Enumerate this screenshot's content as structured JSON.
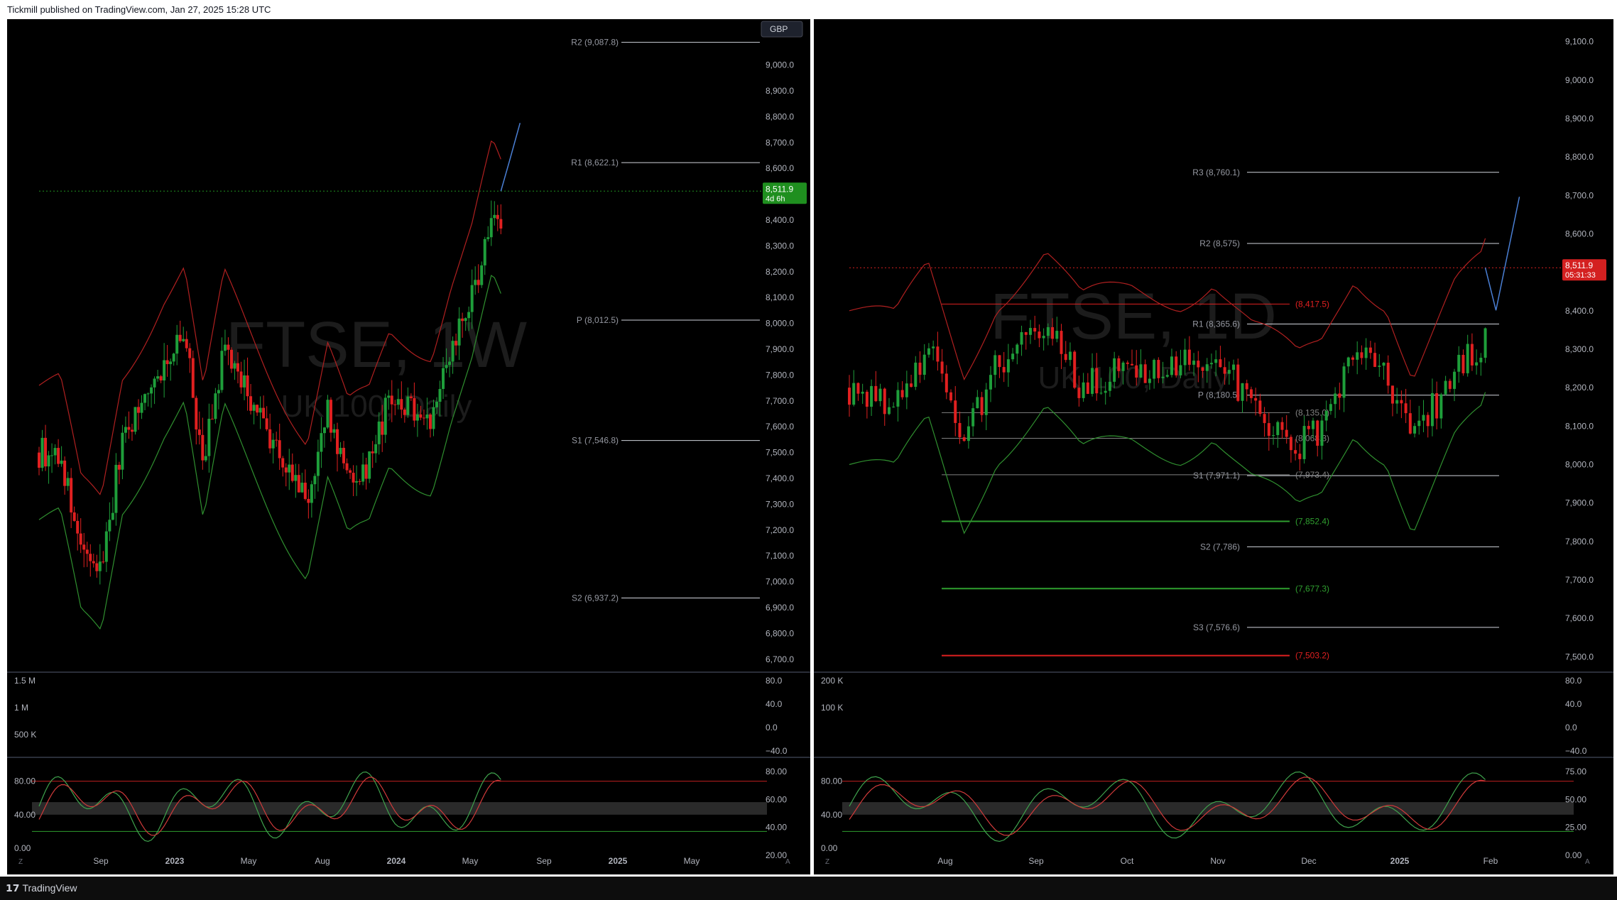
{
  "header": {
    "text": "Tickmill published on TradingView.com, Jan 27, 2025 15:28 UTC"
  },
  "footer": {
    "brand": "TradingView",
    "logo": "tradingview-logo"
  },
  "colors": {
    "bg": "#000000",
    "up": "#1e9e3a",
    "down": "#e02020",
    "price_tag": "#1f8f1f",
    "price_tag_right": "#d42020",
    "ma_red": "#b02020",
    "ma_green": "#2f8f2f"
  },
  "panels": [
    {
      "id": "left",
      "watermark": {
        "symbol": "FTSE, 1W",
        "subtitle": "UK 100, Daily"
      },
      "currency_button": "GBP",
      "price_axis": {
        "ticks": [
          "9,000.0",
          "8,900.0",
          "8,800.0",
          "8,700.0",
          "8,600.0",
          "8,400.0",
          "8,300.0",
          "8,200.0",
          "8,100.0",
          "8,000.0",
          "7,900.0",
          "7,800.0",
          "7,700.0",
          "7,600.0",
          "7,500.0",
          "7,400.0",
          "7,300.0",
          "7,200.0",
          "7,100.0",
          "7,000.0",
          "6,900.0",
          "6,800.0",
          "6,700.0"
        ],
        "min": 6650,
        "max": 9150
      },
      "last_price": {
        "value": "8,511.9",
        "countdown": "4d 6h"
      },
      "pivots": [
        {
          "label": "R2 (9,087.8)",
          "value": 9087.8
        },
        {
          "label": "R1 (8,622.1)",
          "value": 8622.1
        },
        {
          "label": "P (8,012.5)",
          "value": 8012.5
        },
        {
          "label": "S1 (7,546.8)",
          "value": 7546.8
        },
        {
          "label": "S2 (6,937.2)",
          "value": 6937.2
        }
      ],
      "volume_axis": [
        "1.5 M",
        "1 M",
        "500 K"
      ],
      "volume_osc_axis": [
        "80.0",
        "40.0",
        "0.0",
        "−40.0"
      ],
      "stoch_axis_left": [
        "80.00",
        "40.00",
        "0.00"
      ],
      "stoch_axis_right": [
        "80.00",
        "60.00",
        "40.00",
        "20.00"
      ],
      "time_axis": [
        "Sep",
        "2023",
        "May",
        "Aug",
        "2024",
        "May",
        "Sep",
        "2025",
        "May"
      ],
      "corner_left": "Z",
      "corner_right": "A"
    },
    {
      "id": "right",
      "watermark": {
        "symbol": "FTSE, 1D",
        "subtitle": "UK 100, Daily"
      },
      "price_axis": {
        "ticks": [
          "9,100.0",
          "9,000.0",
          "8,900.0",
          "8,800.0",
          "8,700.0",
          "8,600.0",
          "8,400.0",
          "8,300.0",
          "8,200.0",
          "8,100.0",
          "8,000.0",
          "7,900.0",
          "7,800.0",
          "7,700.0",
          "7,600.0",
          "7,500.0"
        ],
        "min": 7460,
        "max": 9140
      },
      "last_price": {
        "value": "8,511.9",
        "countdown": "05:31:33"
      },
      "pivots": [
        {
          "label": "R3 (8,760.1)",
          "value": 8760.1
        },
        {
          "label": "R2 (8,575)",
          "value": 8575
        },
        {
          "label": "R1 (8,365.6)",
          "value": 8365.6
        },
        {
          "label": "P (8,180.5)",
          "value": 8180.5
        },
        {
          "label": "S1 (7,971.1)",
          "value": 7971.1
        },
        {
          "label": "S2 (7,786)",
          "value": 7786
        },
        {
          "label": "S3 (7,576.6)",
          "value": 7576.6
        }
      ],
      "fib_levels": [
        {
          "label": "(8,417.5)",
          "value": 8417.5
        },
        {
          "label": "(8,135.0)",
          "value": 8135.0
        },
        {
          "label": "(8,068.3)",
          "value": 8068.3
        },
        {
          "label": "(7,973.4)",
          "value": 7973.4
        },
        {
          "label": "(7,852.4)",
          "value": 7852.4
        },
        {
          "label": "(7,677.3)",
          "value": 7677.3
        },
        {
          "label": "(7,503.2)",
          "value": 7503.2
        }
      ],
      "volume_axis": [
        "200 K",
        "100 K"
      ],
      "volume_osc_axis": [
        "80.0",
        "40.0",
        "0.0",
        "−40.0"
      ],
      "stoch_axis_left": [
        "80.00",
        "40.00",
        "0.00"
      ],
      "stoch_axis_right": [
        "75.00",
        "50.00",
        "25.00",
        "0.00"
      ],
      "time_axis": [
        "Aug",
        "Sep",
        "Oct",
        "Nov",
        "Dec",
        "2025",
        "Feb"
      ],
      "corner_left": "Z",
      "corner_right": "A"
    }
  ],
  "chart_data": [
    {
      "type": "candlestick",
      "symbol": "FTSE",
      "interval": "1W",
      "x_range": [
        "2022-07",
        "2025-06"
      ],
      "ylim": [
        6650,
        9150
      ],
      "close_path": [
        {
          "t": "2022-08",
          "v": 7500
        },
        {
          "t": "2022-09",
          "v": 7100
        },
        {
          "t": "2022-10",
          "v": 7050
        },
        {
          "t": "2022-11",
          "v": 7550
        },
        {
          "t": "2023-01",
          "v": 7850
        },
        {
          "t": "2023-02",
          "v": 7950
        },
        {
          "t": "2023-03",
          "v": 7450
        },
        {
          "t": "2023-04",
          "v": 7900
        },
        {
          "t": "2023-05",
          "v": 7750
        },
        {
          "t": "2023-07",
          "v": 7450
        },
        {
          "t": "2023-08",
          "v": 7300
        },
        {
          "t": "2023-09",
          "v": 7650
        },
        {
          "t": "2023-10",
          "v": 7400
        },
        {
          "t": "2023-11",
          "v": 7450
        },
        {
          "t": "2023-12",
          "v": 7700
        },
        {
          "t": "2024-02",
          "v": 7650
        },
        {
          "t": "2024-03",
          "v": 7900
        },
        {
          "t": "2024-04",
          "v": 8100
        },
        {
          "t": "2024-05",
          "v": 8400
        },
        {
          "t": "2024-06",
          "v": 8200
        },
        {
          "t": "2024-07",
          "v": 8250
        },
        {
          "t": "2024-08",
          "v": 8300
        },
        {
          "t": "2024-09",
          "v": 8250
        },
        {
          "t": "2024-10",
          "v": 8250
        },
        {
          "t": "2024-11",
          "v": 8150
        },
        {
          "t": "2024-12",
          "v": 8100
        },
        {
          "t": "2025-01",
          "v": 8511.9
        }
      ]
    },
    {
      "type": "candlestick",
      "symbol": "FTSE",
      "interval": "1D",
      "x_range": [
        "2024-07-01",
        "2025-02-05"
      ],
      "ylim": [
        7460,
        9140
      ],
      "close_path": [
        {
          "t": "2024-07-01",
          "v": 8200
        },
        {
          "t": "2024-07-15",
          "v": 8150
        },
        {
          "t": "2024-07-25",
          "v": 8300
        },
        {
          "t": "2024-08-05",
          "v": 8050
        },
        {
          "t": "2024-08-15",
          "v": 8250
        },
        {
          "t": "2024-08-30",
          "v": 8350
        },
        {
          "t": "2024-09-10",
          "v": 8200
        },
        {
          "t": "2024-09-25",
          "v": 8250
        },
        {
          "t": "2024-10-10",
          "v": 8250
        },
        {
          "t": "2024-10-20",
          "v": 8300
        },
        {
          "t": "2024-11-01",
          "v": 8150
        },
        {
          "t": "2024-11-15",
          "v": 8050
        },
        {
          "t": "2024-11-22",
          "v": 8100
        },
        {
          "t": "2024-12-02",
          "v": 8300
        },
        {
          "t": "2024-12-12",
          "v": 8250
        },
        {
          "t": "2024-12-20",
          "v": 8050
        },
        {
          "t": "2025-01-02",
          "v": 8250
        },
        {
          "t": "2025-01-10",
          "v": 8300
        },
        {
          "t": "2025-01-17",
          "v": 8500
        },
        {
          "t": "2025-01-24",
          "v": 8550
        },
        {
          "t": "2025-01-27",
          "v": 8511.9
        }
      ]
    }
  ]
}
